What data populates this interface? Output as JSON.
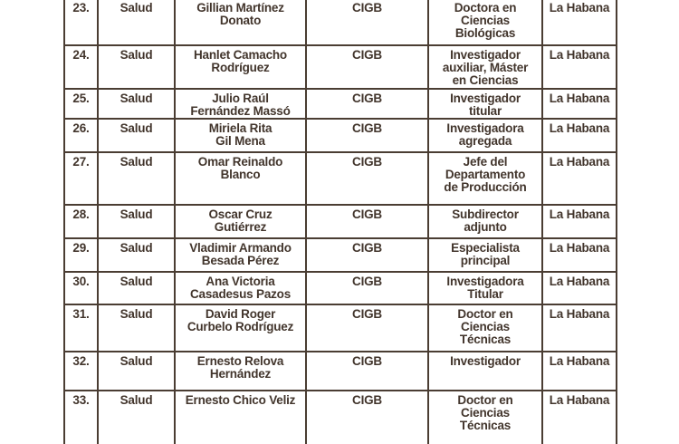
{
  "document": {
    "type": "table-fragment",
    "colors": {
      "background": "#ffffff",
      "text": "#42352c",
      "border": "#4a3d33"
    },
    "table": {
      "rows": [
        {
          "num": "23.",
          "sector": "Salud",
          "name": "Gillian Martínez\nDonato",
          "institution": "CIGB",
          "position": "Doctora en\nCiencias\nBiológicas",
          "location": "La Habana"
        },
        {
          "num": "24.",
          "sector": "Salud",
          "name": "Hanlet Camacho\nRodríguez",
          "institution": "CIGB",
          "position": "Investigador\nauxiliar, Máster\nen Ciencias",
          "location": "La Habana"
        },
        {
          "num": "25.",
          "sector": "Salud",
          "name": "Julio Raúl\nFernández Massó",
          "institution": "CIGB",
          "position": "Investigador\ntitular",
          "location": "La Habana"
        },
        {
          "num": "26.",
          "sector": "Salud",
          "name": "Miriela Rita\nGil Mena",
          "institution": "CIGB",
          "position": "Investigadora\nagregada",
          "location": "La Habana"
        },
        {
          "num": "27.",
          "sector": "Salud",
          "name": "Omar Reinaldo\nBlanco",
          "institution": "CIGB",
          "position": "Jefe del\nDepartamento\nde Producción",
          "location": "La Habana"
        },
        {
          "num": "28.",
          "sector": "Salud",
          "name": "Oscar Cruz\nGutiérrez",
          "institution": "CIGB",
          "position": "Subdirector\nadjunto",
          "location": "La Habana"
        },
        {
          "num": "29.",
          "sector": "Salud",
          "name": "Vladimir Armando\nBesada Pérez",
          "institution": "CIGB",
          "position": "Especialista\nprincipal",
          "location": "La Habana"
        },
        {
          "num": "30.",
          "sector": "Salud",
          "name": "Ana Victoria\nCasadesus Pazos",
          "institution": "CIGB",
          "position": "Investigadora\nTitular",
          "location": "La Habana"
        },
        {
          "num": "31.",
          "sector": "Salud",
          "name": "David Roger\nCurbelo Rodríguez",
          "institution": "CIGB",
          "position": "Doctor en\nCiencias\nTécnicas",
          "location": "La Habana"
        },
        {
          "num": "32.",
          "sector": "Salud",
          "name": "Ernesto Relova\nHernández",
          "institution": "CIGB",
          "position": "Investigador",
          "location": "La Habana"
        },
        {
          "num": "33.",
          "sector": "Salud",
          "name": "Ernesto Chico Veliz",
          "institution": "CIGB",
          "position": "Doctor en\nCiencias\nTécnicas",
          "location": "La Habana"
        }
      ]
    }
  }
}
